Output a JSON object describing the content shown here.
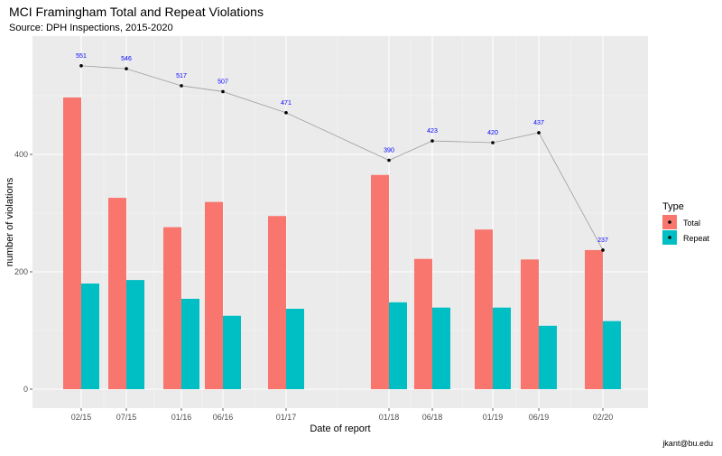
{
  "title": "MCI Framingham Total and Repeat Violations",
  "subtitle": "Source: DPH Inspections, 2015-2020",
  "caption": "jkant@bu.edu",
  "colors": {
    "panel": "#ebebeb",
    "total": "#f8766d",
    "repeat": "#00bfc4",
    "line": "#9e9e9e",
    "point": "#000000",
    "label": "#0000ff"
  },
  "chart_data": {
    "type": "bar",
    "title": "MCI Framingham Total and Repeat Violations",
    "subtitle": "Source: DPH Inspections, 2015-2020",
    "xlabel": "Date of report",
    "ylabel": "number of violations",
    "ylim": [
      -30,
      600
    ],
    "yticks": [
      0,
      200,
      400
    ],
    "legend_title": "Type",
    "legend_position": "right",
    "grid": true,
    "categories": [
      "02/15",
      "07/15",
      "01/16",
      "06/16",
      "01/17",
      "01/18",
      "06/18",
      "01/19",
      "06/19",
      "02/20"
    ],
    "x_dates": [
      "2015-02",
      "2015-07",
      "2016-01",
      "2016-06",
      "2017-01",
      "2018-01",
      "2018-06",
      "2019-01",
      "2019-06",
      "2020-02"
    ],
    "series": [
      {
        "name": "Total",
        "values": [
          497,
          326,
          276,
          319,
          295,
          365,
          222,
          272,
          221,
          237
        ]
      },
      {
        "name": "Repeat",
        "values": [
          180,
          186,
          154,
          125,
          137,
          148,
          139,
          139,
          108,
          116
        ]
      }
    ],
    "line_series": {
      "values": [
        551,
        546,
        517,
        507,
        471,
        390,
        423,
        420,
        437,
        237
      ],
      "labels": [
        "551",
        "546",
        "517",
        "507",
        "471",
        "390",
        "423",
        "420",
        "437",
        "237"
      ]
    }
  }
}
